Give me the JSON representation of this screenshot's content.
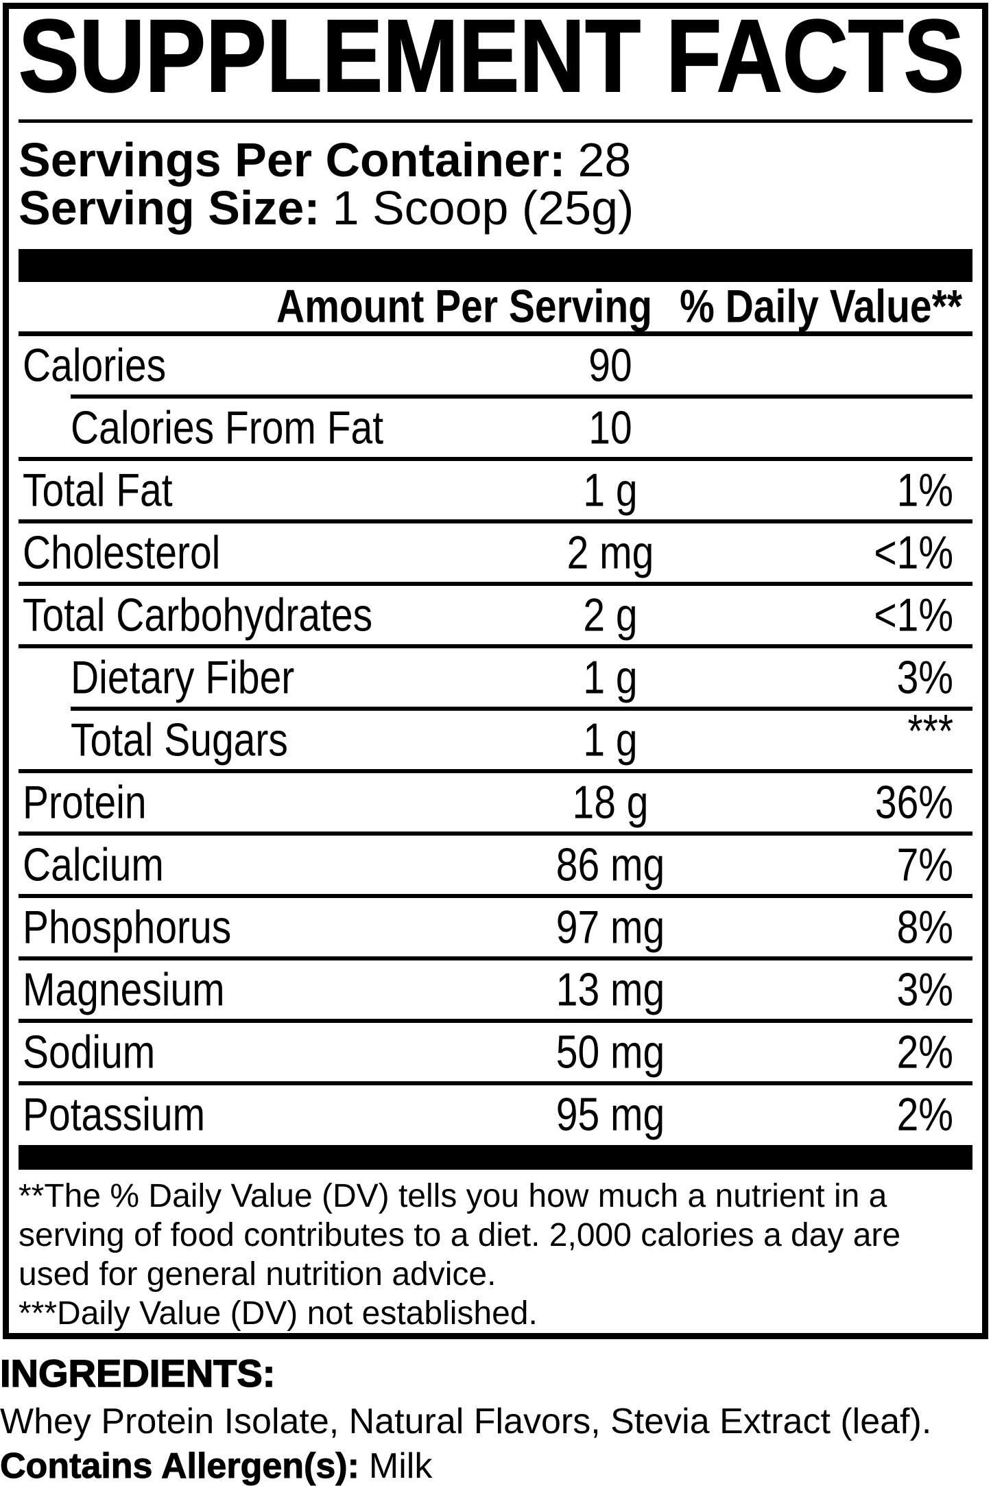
{
  "title": "SUPPLEMENT FACTS",
  "servings": {
    "per_container_label": "Servings Per Container:",
    "per_container_value": "28",
    "size_label": "Serving Size:",
    "size_value": "1 Scoop (25g)"
  },
  "table": {
    "amount_header": "Amount Per Serving",
    "dv_header": "% Daily Value**",
    "rows": [
      {
        "label": "Calories",
        "amount": "90",
        "dv": "",
        "indent": false
      },
      {
        "label": "Calories From Fat",
        "amount": "10",
        "dv": "",
        "indent": true
      },
      {
        "label": "Total Fat",
        "amount": "1 g",
        "dv": "1%",
        "indent": false
      },
      {
        "label": "Cholesterol",
        "amount": "2 mg",
        "dv": "<1%",
        "indent": false
      },
      {
        "label": "Total Carbohydrates",
        "amount": "2 g",
        "dv": "<1%",
        "indent": false
      },
      {
        "label": "Dietary Fiber",
        "amount": "1 g",
        "dv": "3%",
        "indent": true
      },
      {
        "label": "Total Sugars",
        "amount": "1 g",
        "dv": "***",
        "indent": true,
        "dv_raised": true
      },
      {
        "label": "Protein",
        "amount": "18 g",
        "dv": "36%",
        "indent": false
      },
      {
        "label": "Calcium",
        "amount": "86 mg",
        "dv": "7%",
        "indent": false
      },
      {
        "label": "Phosphorus",
        "amount": "97 mg",
        "dv": "8%",
        "indent": false
      },
      {
        "label": "Magnesium",
        "amount": "13 mg",
        "dv": "3%",
        "indent": false
      },
      {
        "label": "Sodium",
        "amount": "50 mg",
        "dv": "2%",
        "indent": false
      },
      {
        "label": "Potassium",
        "amount": "95 mg",
        "dv": "2%",
        "indent": false
      }
    ]
  },
  "footnotes": {
    "daily_value": "**The % Daily Value (DV) tells you how much a nutrient in a serving of food contributes to a diet. 2,000 calories a day are used for general nutrition advice.",
    "not_established": "***Daily Value (DV) not established."
  },
  "ingredients": {
    "heading": "INGREDIENTS:",
    "list": "Whey Protein Isolate, Natural Flavors, Stevia Extract (leaf).",
    "allergen_label": "Contains Allergen(s):",
    "allergen_value": "Milk"
  },
  "colors": {
    "text": "#000000",
    "background": "#ffffff"
  }
}
